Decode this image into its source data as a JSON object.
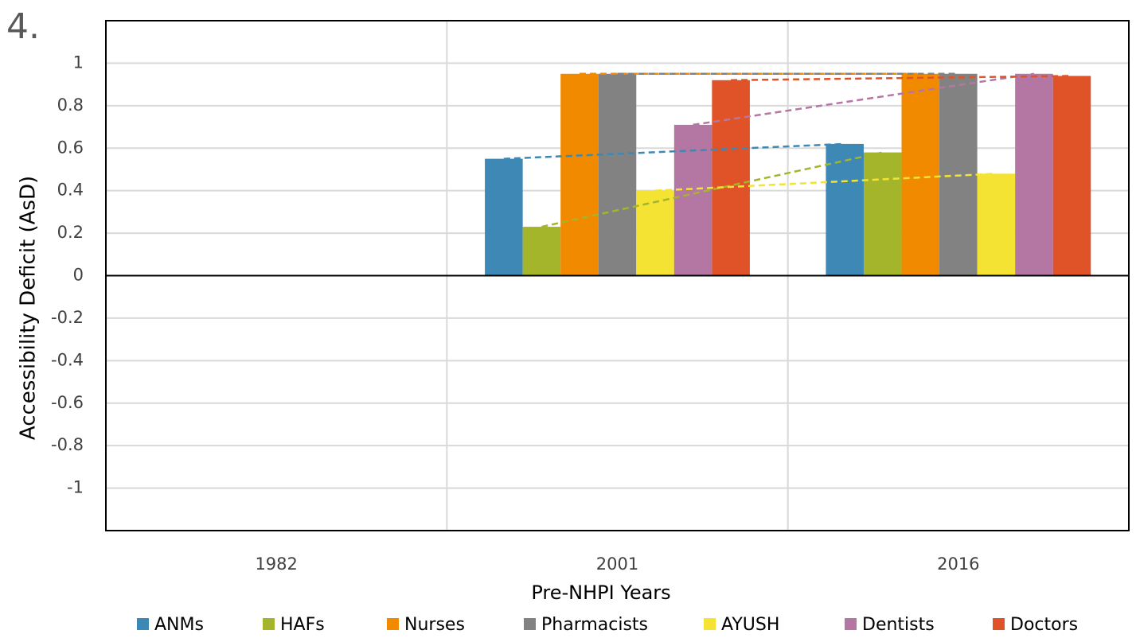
{
  "chart_data": {
    "type": "bar",
    "annotation": "4.",
    "x_label": "Pre-NHPI Years",
    "y_label": "Accessibility Deficit (AsD)",
    "categories": [
      "1982",
      "2001",
      "2016"
    ],
    "series": [
      {
        "name": "ANMs",
        "color": "#3d88b5",
        "values": [
          null,
          0.55,
          0.62
        ]
      },
      {
        "name": "HAFs",
        "color": "#a5b52b",
        "values": [
          null,
          0.23,
          0.58
        ]
      },
      {
        "name": "Nurses",
        "color": "#f28a00",
        "values": [
          null,
          0.95,
          0.95
        ]
      },
      {
        "name": "Pharmacists",
        "color": "#828282",
        "values": [
          null,
          0.95,
          0.95
        ]
      },
      {
        "name": "AYUSH",
        "color": "#f5e334",
        "values": [
          null,
          0.4,
          0.48
        ]
      },
      {
        "name": "Dentists",
        "color": "#b477a3",
        "values": [
          null,
          0.71,
          0.95
        ]
      },
      {
        "name": "Doctors",
        "color": "#e05227",
        "values": [
          null,
          0.92,
          0.94
        ]
      }
    ],
    "ylim": [
      -1.2,
      1.2
    ],
    "yticks": [
      -1,
      -0.8,
      -0.6,
      -0.4,
      -0.2,
      0,
      0.2,
      0.4,
      0.6,
      0.8,
      1
    ],
    "grid": true,
    "trendlines": true,
    "legend": "bottom"
  }
}
